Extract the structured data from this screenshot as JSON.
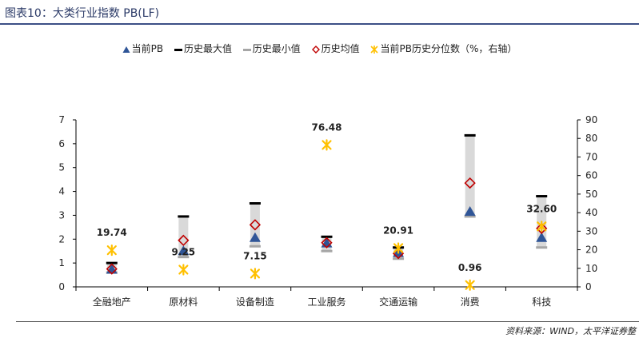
{
  "figure": {
    "title": "图表10：大类行业指数 PB(LF)",
    "source": "资料来源：WIND，太平洋证券整"
  },
  "colors": {
    "current": "#2f5597",
    "max": "#000000",
    "min": "#a6a6a6",
    "range_bar": "#d9d9d9",
    "avg": "#c00000",
    "percentile": "#ffc000",
    "axis": "#000000"
  },
  "chart_data": {
    "type": "bar",
    "title": "",
    "xlabel": "",
    "ylabel": "",
    "categories": [
      "全融地产",
      "原材料",
      "设备制造",
      "工业服务",
      "交通运输",
      "消费",
      "科技"
    ],
    "ylim": [
      0,
      7
    ],
    "yticks": [
      0,
      1,
      2,
      3,
      4,
      5,
      6,
      7
    ],
    "y2lim": [
      0,
      90
    ],
    "y2ticks": [
      0,
      10,
      20,
      30,
      40,
      50,
      60,
      70,
      80,
      90
    ],
    "legend_position": "top",
    "series": [
      {
        "name": "当前PB",
        "marker": "triangle",
        "axis": "left",
        "values": [
          0.72,
          1.5,
          2.05,
          1.82,
          1.42,
          3.15,
          2.05
        ]
      },
      {
        "name": "历史最大值",
        "marker": "dash",
        "axis": "left",
        "values": [
          1.0,
          2.95,
          3.5,
          2.1,
          1.65,
          6.35,
          3.8
        ]
      },
      {
        "name": "历史最小值",
        "marker": "dash",
        "axis": "left",
        "values": [
          0.6,
          1.25,
          1.7,
          1.5,
          1.18,
          2.95,
          1.65
        ]
      },
      {
        "name": "历史均值",
        "marker": "diamond",
        "axis": "left",
        "values": [
          0.75,
          1.95,
          2.6,
          1.85,
          1.4,
          4.35,
          2.45
        ]
      },
      {
        "name": "当前PB历史分位数（%，右轴）",
        "marker": "star",
        "axis": "right",
        "values": [
          19.74,
          9.25,
          7.15,
          76.48,
          20.91,
          0.96,
          32.6
        ]
      }
    ],
    "data_labels": [
      "19.74",
      "9.25",
      "7.15",
      "76.48",
      "20.91",
      "0.96",
      "32.60"
    ]
  }
}
